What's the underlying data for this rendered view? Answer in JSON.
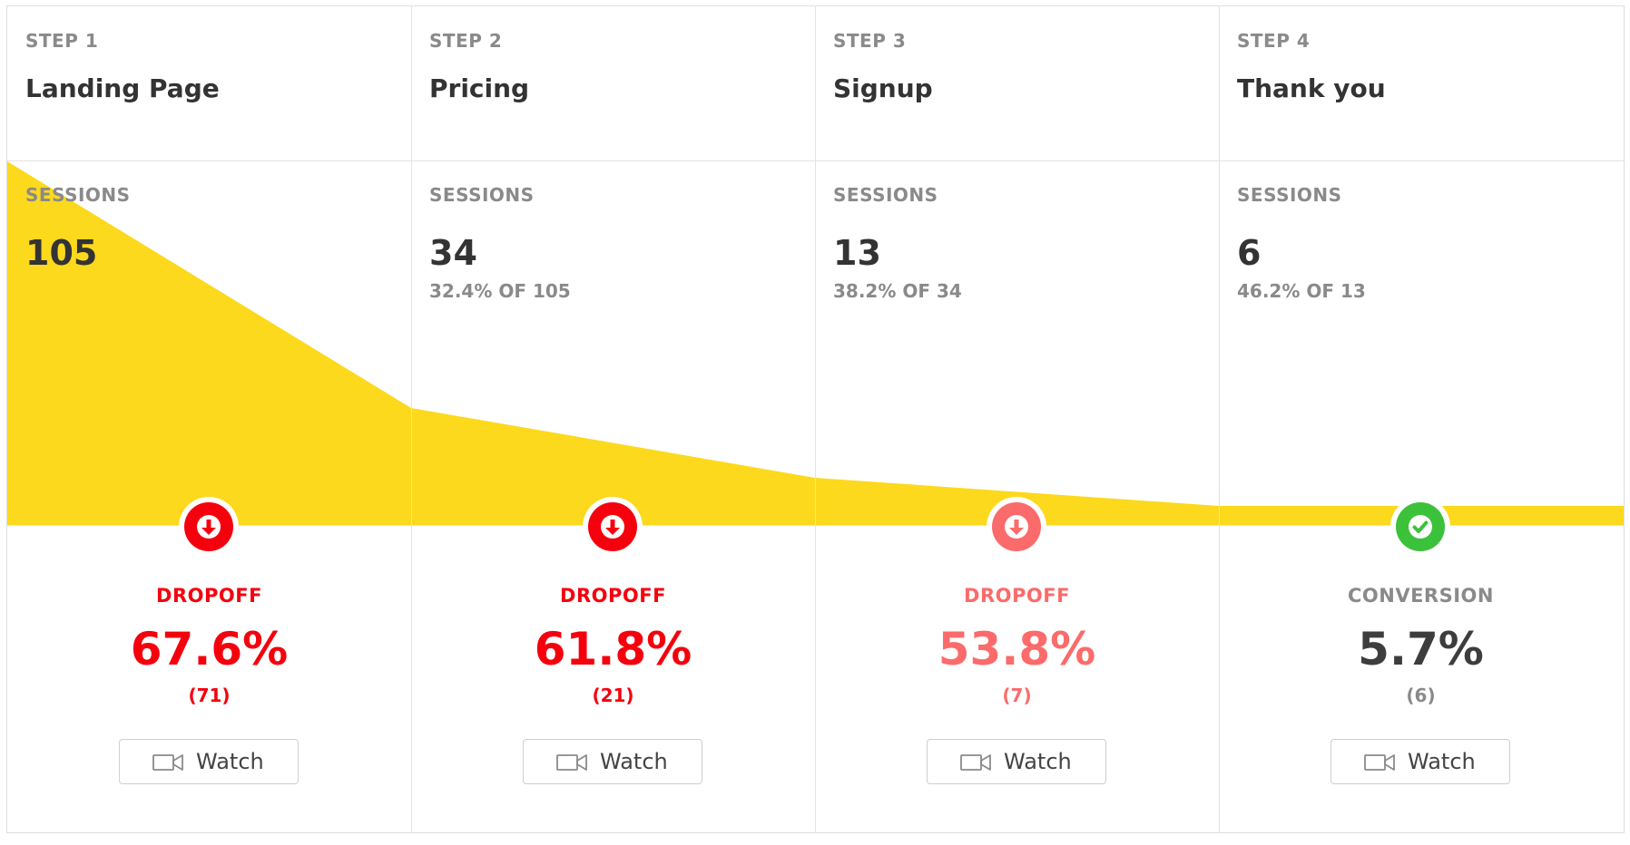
{
  "colors": {
    "funnel_fill": "#fcd91c",
    "dropoff_red": "#f5000d",
    "dropoff_light_red": "#fb6b6b",
    "conversion_green": "#3cc13b",
    "conversion_text": "#3d3d3d"
  },
  "steps": [
    {
      "label": "STEP 1",
      "title": "Landing Page",
      "sessions_label": "SESSIONS",
      "sessions": "105",
      "sessions_of": "",
      "metric_label": "DROPOFF",
      "metric_value": "67.6%",
      "metric_count": "(71)",
      "icon": "arrow-down-icon",
      "watch_label": "Watch"
    },
    {
      "label": "STEP 2",
      "title": "Pricing",
      "sessions_label": "SESSIONS",
      "sessions": "34",
      "sessions_of": "32.4% OF 105",
      "metric_label": "DROPOFF",
      "metric_value": "61.8%",
      "metric_count": "(21)",
      "icon": "arrow-down-icon",
      "watch_label": "Watch"
    },
    {
      "label": "STEP 3",
      "title": "Signup",
      "sessions_label": "SESSIONS",
      "sessions": "13",
      "sessions_of": "38.2% OF 34",
      "metric_label": "DROPOFF",
      "metric_value": "53.8%",
      "metric_count": "(7)",
      "icon": "arrow-down-icon",
      "watch_label": "Watch"
    },
    {
      "label": "STEP 4",
      "title": "Thank you",
      "sessions_label": "SESSIONS",
      "sessions": "6",
      "sessions_of": "46.2% OF 13",
      "metric_label": "CONVERSION",
      "metric_value": "5.7%",
      "metric_count": "(6)",
      "icon": "checkmark-icon",
      "watch_label": "Watch"
    }
  ]
}
